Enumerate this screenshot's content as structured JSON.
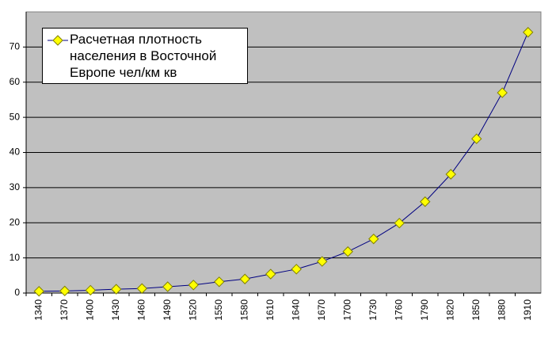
{
  "chart_data": {
    "type": "line",
    "categories": [
      "1340",
      "1370",
      "1400",
      "1430",
      "1460",
      "1490",
      "1520",
      "1550",
      "1580",
      "1610",
      "1640",
      "1670",
      "1700",
      "1730",
      "1760",
      "1790",
      "1820",
      "1850",
      "1880",
      "1910"
    ],
    "series": [
      {
        "name": "Расчетная плотность населения в Восточной Европе чел/км кв",
        "color": "#000080",
        "marker_color": "#ffff00",
        "values": [
          0.5,
          0.6,
          0.8,
          1.1,
          1.3,
          1.8,
          2.3,
          3.2,
          4.0,
          5.4,
          6.8,
          9.0,
          11.8,
          15.4,
          19.9,
          26.0,
          33.8,
          43.9,
          57.0,
          74.2
        ]
      }
    ],
    "ylim": [
      0,
      80
    ],
    "yticks": [
      0,
      10,
      20,
      30,
      40,
      50,
      60,
      70
    ],
    "grid": true,
    "legend": "upper-left"
  }
}
